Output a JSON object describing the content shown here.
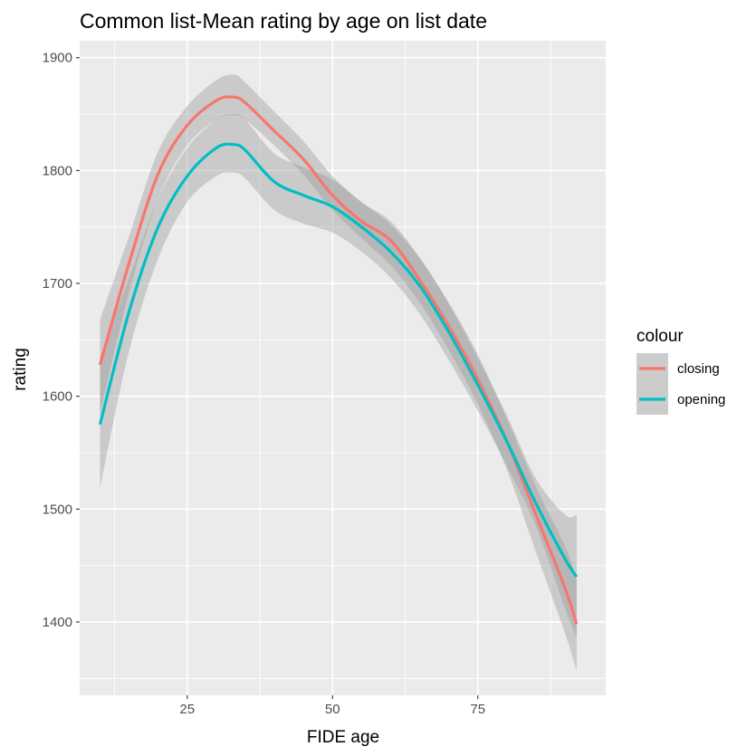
{
  "chart_data": {
    "type": "line",
    "title": "Common list-Mean rating by age on list date",
    "xlabel": "FIDE age",
    "ylabel": "rating",
    "xlim": [
      6.5,
      97
    ],
    "ylim": [
      1335,
      1915
    ],
    "x_ticks": [
      25,
      50,
      75
    ],
    "y_ticks": [
      1400,
      1500,
      1600,
      1700,
      1800,
      1900
    ],
    "x_tick_labels": [
      "25",
      "50",
      "75"
    ],
    "y_tick_labels": [
      "1400",
      "1500",
      "1600",
      "1700",
      "1800",
      "1900"
    ],
    "grid": true,
    "background": "#ebebeb",
    "legend": {
      "title": "colour",
      "position": "right"
    },
    "series": [
      {
        "name": "closing",
        "color": "#f8766d",
        "x": [
          10,
          15,
          20,
          25,
          30,
          33,
          35,
          40,
          45,
          50,
          55,
          60,
          65,
          70,
          75,
          80,
          85,
          90,
          92
        ],
        "y": [
          1628,
          1718,
          1797,
          1840,
          1862,
          1865,
          1860,
          1835,
          1810,
          1778,
          1755,
          1738,
          1703,
          1662,
          1615,
          1560,
          1495,
          1430,
          1398
        ],
        "ci_lower": [
          1585,
          1692,
          1775,
          1822,
          1845,
          1849,
          1845,
          1822,
          1796,
          1765,
          1740,
          1716,
          1683,
          1641,
          1593,
          1535,
          1462,
          1390,
          1357
        ],
        "ci_upper": [
          1668,
          1742,
          1817,
          1857,
          1880,
          1885,
          1878,
          1852,
          1826,
          1795,
          1772,
          1755,
          1723,
          1683,
          1637,
          1580,
          1520,
          1467,
          1438
        ]
      },
      {
        "name": "opening",
        "color": "#00bfc4",
        "x": [
          10,
          15,
          20,
          25,
          30,
          33,
          35,
          40,
          45,
          50,
          55,
          60,
          65,
          70,
          75,
          80,
          85,
          90,
          92
        ],
        "y": [
          1575,
          1675,
          1750,
          1795,
          1820,
          1823,
          1818,
          1790,
          1778,
          1768,
          1750,
          1728,
          1698,
          1657,
          1610,
          1560,
          1505,
          1456,
          1440
        ],
        "ci_lower": [
          1519,
          1640,
          1722,
          1772,
          1795,
          1798,
          1793,
          1765,
          1753,
          1745,
          1728,
          1705,
          1673,
          1632,
          1587,
          1538,
          1485,
          1412,
          1386
        ],
        "ci_upper": [
          1635,
          1705,
          1775,
          1820,
          1845,
          1850,
          1845,
          1815,
          1803,
          1792,
          1772,
          1752,
          1722,
          1682,
          1634,
          1583,
          1527,
          1495,
          1495
        ]
      }
    ]
  }
}
